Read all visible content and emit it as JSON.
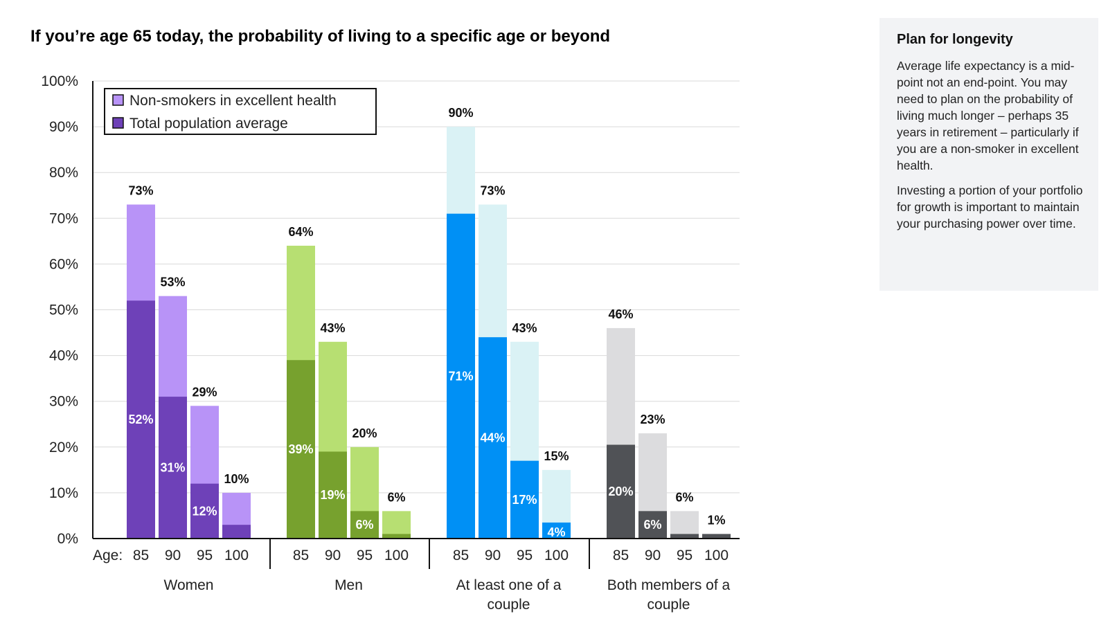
{
  "chart_data": {
    "type": "bar",
    "title": "If you’re age 65 today, the probability of living to a specific age or beyond",
    "y_ticks": [
      "0%",
      "10%",
      "20%",
      "30%",
      "40%",
      "50%",
      "60%",
      "70%",
      "80%",
      "90%",
      "100%"
    ],
    "ylim": [
      0,
      100
    ],
    "x_prefix": "Age:",
    "categories": [
      "85",
      "90",
      "95",
      "100"
    ],
    "legend": [
      "Non-smokers in excellent health",
      "Total population average"
    ],
    "groups": [
      {
        "name": "Women",
        "colors": {
          "light": "#b893f7",
          "dark": "#6e41b8"
        },
        "series": [
          {
            "name": "Non-smokers in excellent health",
            "values": [
              73,
              53,
              29,
              10
            ],
            "labels": [
              "73%",
              "53%",
              "29%",
              "10%"
            ]
          },
          {
            "name": "Total population average",
            "values": [
              52,
              31,
              12,
              3
            ],
            "labels": [
              "52%",
              "31%",
              "12%",
              ""
            ]
          }
        ]
      },
      {
        "name": "Men",
        "colors": {
          "light": "#b7df72",
          "dark": "#77a12e"
        },
        "series": [
          {
            "name": "Non-smokers in excellent health",
            "values": [
              64,
              43,
              20,
              6
            ],
            "labels": [
              "64%",
              "43%",
              "20%",
              "6%"
            ]
          },
          {
            "name": "Total population average",
            "values": [
              39,
              19,
              6,
              1
            ],
            "labels": [
              "39%",
              "19%",
              "6%",
              ""
            ]
          }
        ]
      },
      {
        "name": "At least one of a couple",
        "colors": {
          "light": "#daf2f5",
          "dark": "#0090f5"
        },
        "series": [
          {
            "name": "Non-smokers in excellent health",
            "values": [
              90,
              73,
              43,
              15
            ],
            "labels": [
              "90%",
              "73%",
              "43%",
              "15%"
            ]
          },
          {
            "name": "Total population average",
            "values": [
              71,
              44,
              17,
              3.5
            ],
            "labels": [
              "71%",
              "44%",
              "17%",
              "4%"
            ]
          }
        ]
      },
      {
        "name": "Both members of a couple",
        "colors": {
          "light": "#dcdcde",
          "dark": "#505256"
        },
        "series": [
          {
            "name": "Non-smokers in excellent health",
            "values": [
              46,
              23,
              6,
              1
            ],
            "labels": [
              "46%",
              "23%",
              "6%",
              "1%"
            ]
          },
          {
            "name": "Total population average",
            "values": [
              20.5,
              6,
              1,
              1
            ],
            "labels": [
              "20%",
              "6%",
              "",
              ""
            ]
          }
        ]
      }
    ]
  },
  "sidebar": {
    "title": "Plan for longevity",
    "paragraph1": "Average life expectancy is a mid-point not an end-point. You may need to plan on the probability of living much longer – perhaps 35 years in retirement – particularly if you are a non-smoker in excellent health.",
    "paragraph2": "Investing a portion of your portfolio for growth is important to maintain your purchasing power over time."
  }
}
